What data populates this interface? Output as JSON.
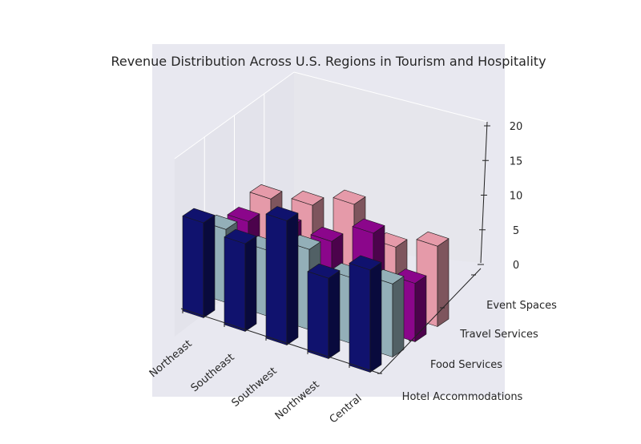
{
  "chart_data": {
    "type": "bar",
    "title": "Revenue Distribution Across U.S. Regions in Tourism and Hospitality",
    "categories": [
      "Northeast",
      "Southeast",
      "Southwest",
      "Northwest",
      "Central"
    ],
    "series": [
      {
        "name": "Hotel Accommodations",
        "values": [
          13,
          12,
          17,
          11,
          14
        ],
        "color": "#10126e"
      },
      {
        "name": "Food Services",
        "values": [
          10,
          9,
          11,
          9,
          10
        ],
        "color": "#93afb8"
      },
      {
        "name": "Travel Services",
        "values": [
          9,
          10,
          10,
          13,
          8
        ],
        "color": "#8b068b"
      },
      {
        "name": "Event Spaces",
        "values": [
          10,
          11,
          13,
          9,
          11
        ],
        "color": "#e59aa9"
      }
    ],
    "zlim": [
      0,
      20
    ],
    "zticks": [
      0,
      5,
      10,
      15,
      20
    ],
    "grid": true
  }
}
